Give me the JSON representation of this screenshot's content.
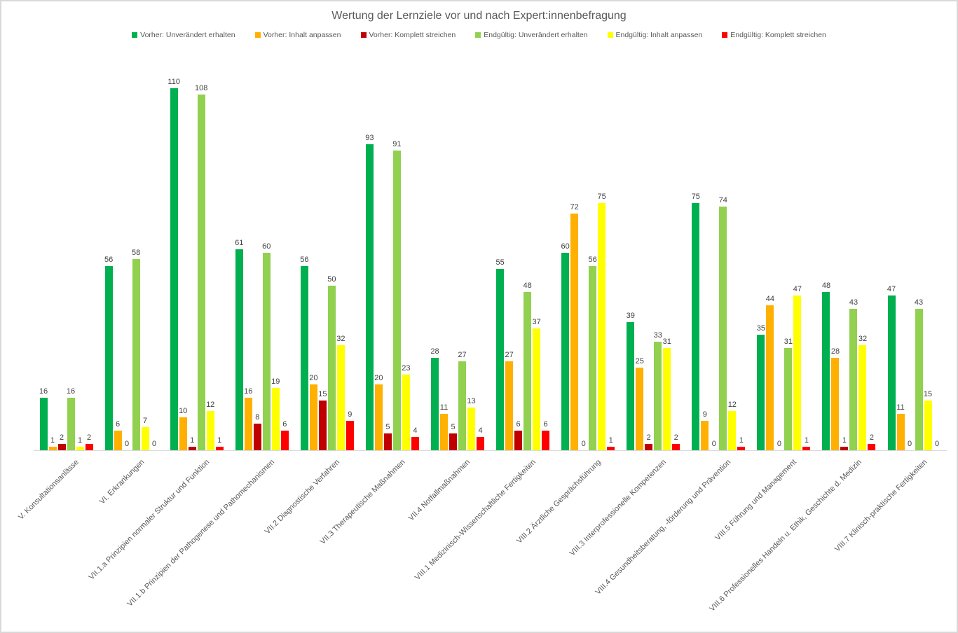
{
  "chart_data": {
    "type": "bar",
    "title": "Wertung der Lernziele vor und nach Expert:innenbefragung",
    "legend_position": "top",
    "grid": false,
    "value_labels": true,
    "ylim": [
      0,
      117
    ],
    "axis_line_color": "#d9d9d9",
    "text_colors": {
      "title": "#595959",
      "value_labels": "#404040",
      "category_labels": "#595959"
    },
    "categories": [
      "V. Konsultationsanlässe",
      "VI. Erkrankungen",
      "VII.1.a Prinzipien normaler Struktur und Funktion",
      "VII.1.b Prinzipien der Pathogenese und Pathomechanismen",
      "VII.2 Diagnostische Verfahren",
      "VII.3 Therapeutische Maßnahmen",
      "VII.4 Notfallmaßnahmen",
      "VIII.1 Medizinisch-Wissenschaftliche Fertigkeiten",
      "VIII.2 Ärztliche Gesprächsführung",
      "VIII.3 Interprofessionelle Kompetenzen",
      "VIII.4 Gesundheitsberatung, -förderung und Prävention",
      "VIII.5 Führung und Management",
      "VIII.6 Professionelles Handeln u. Ethik, Geschichte d. Medizin",
      "VIII.7 Klinisch-praktische Fertigkeiten"
    ],
    "series": [
      {
        "name": "Vorher: Unverändert erhalten",
        "color": "#00B050",
        "values": [
          16,
          56,
          110,
          61,
          56,
          93,
          28,
          55,
          60,
          39,
          75,
          35,
          48,
          47
        ]
      },
      {
        "name": "Vorher: Inhalt anpassen",
        "color": "#FFB000",
        "values": [
          1,
          6,
          10,
          16,
          20,
          20,
          11,
          27,
          72,
          25,
          9,
          44,
          28,
          11
        ]
      },
      {
        "name": "Vorher: Komplett streichen",
        "color": "#C00000",
        "values": [
          2,
          0,
          1,
          8,
          15,
          5,
          5,
          6,
          0,
          2,
          0,
          0,
          1,
          0
        ]
      },
      {
        "name": "Endgültig: Unverändert erhalten",
        "color": "#92D050",
        "values": [
          16,
          58,
          108,
          60,
          50,
          91,
          27,
          48,
          56,
          33,
          74,
          31,
          43,
          43
        ]
      },
      {
        "name": "Endgültig: Inhalt anpassen",
        "color": "#FFFF00",
        "values": [
          1,
          7,
          12,
          19,
          32,
          23,
          13,
          37,
          75,
          31,
          12,
          47,
          32,
          15
        ]
      },
      {
        "name": "Endgültig: Komplett streichen",
        "color": "#FF0000",
        "values": [
          2,
          0,
          1,
          6,
          9,
          4,
          4,
          6,
          1,
          2,
          1,
          1,
          2,
          0
        ]
      }
    ]
  }
}
